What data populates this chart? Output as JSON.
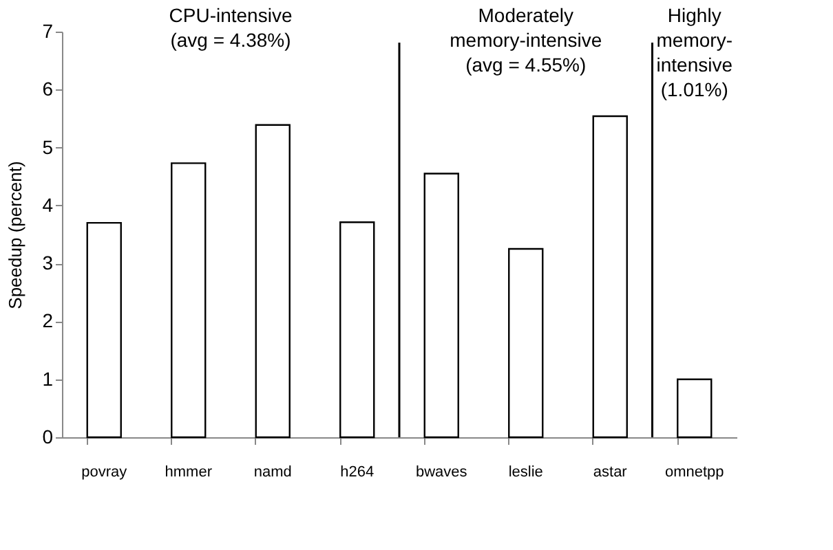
{
  "chart_data": {
    "type": "bar",
    "categories": [
      "povray",
      "hmmer",
      "namd",
      "h264",
      "bwaves",
      "leslie",
      "astar",
      "omnetpp"
    ],
    "values": [
      3.7,
      4.73,
      5.39,
      3.71,
      4.55,
      3.25,
      5.54,
      1.0
    ],
    "color": "#ffffff",
    "ylabel": "Speedup (percent)",
    "ylim": [
      0,
      7
    ],
    "yticks": [
      0,
      1,
      2,
      3,
      4,
      5,
      6,
      7
    ],
    "annotations": [
      "CPU-intensive\n(avg = 4.38%)",
      "Moderately\nmemory-intensive\n(avg = 4.55%)",
      "Highly\nmemory-\nintensive\n(1.01%)"
    ]
  }
}
